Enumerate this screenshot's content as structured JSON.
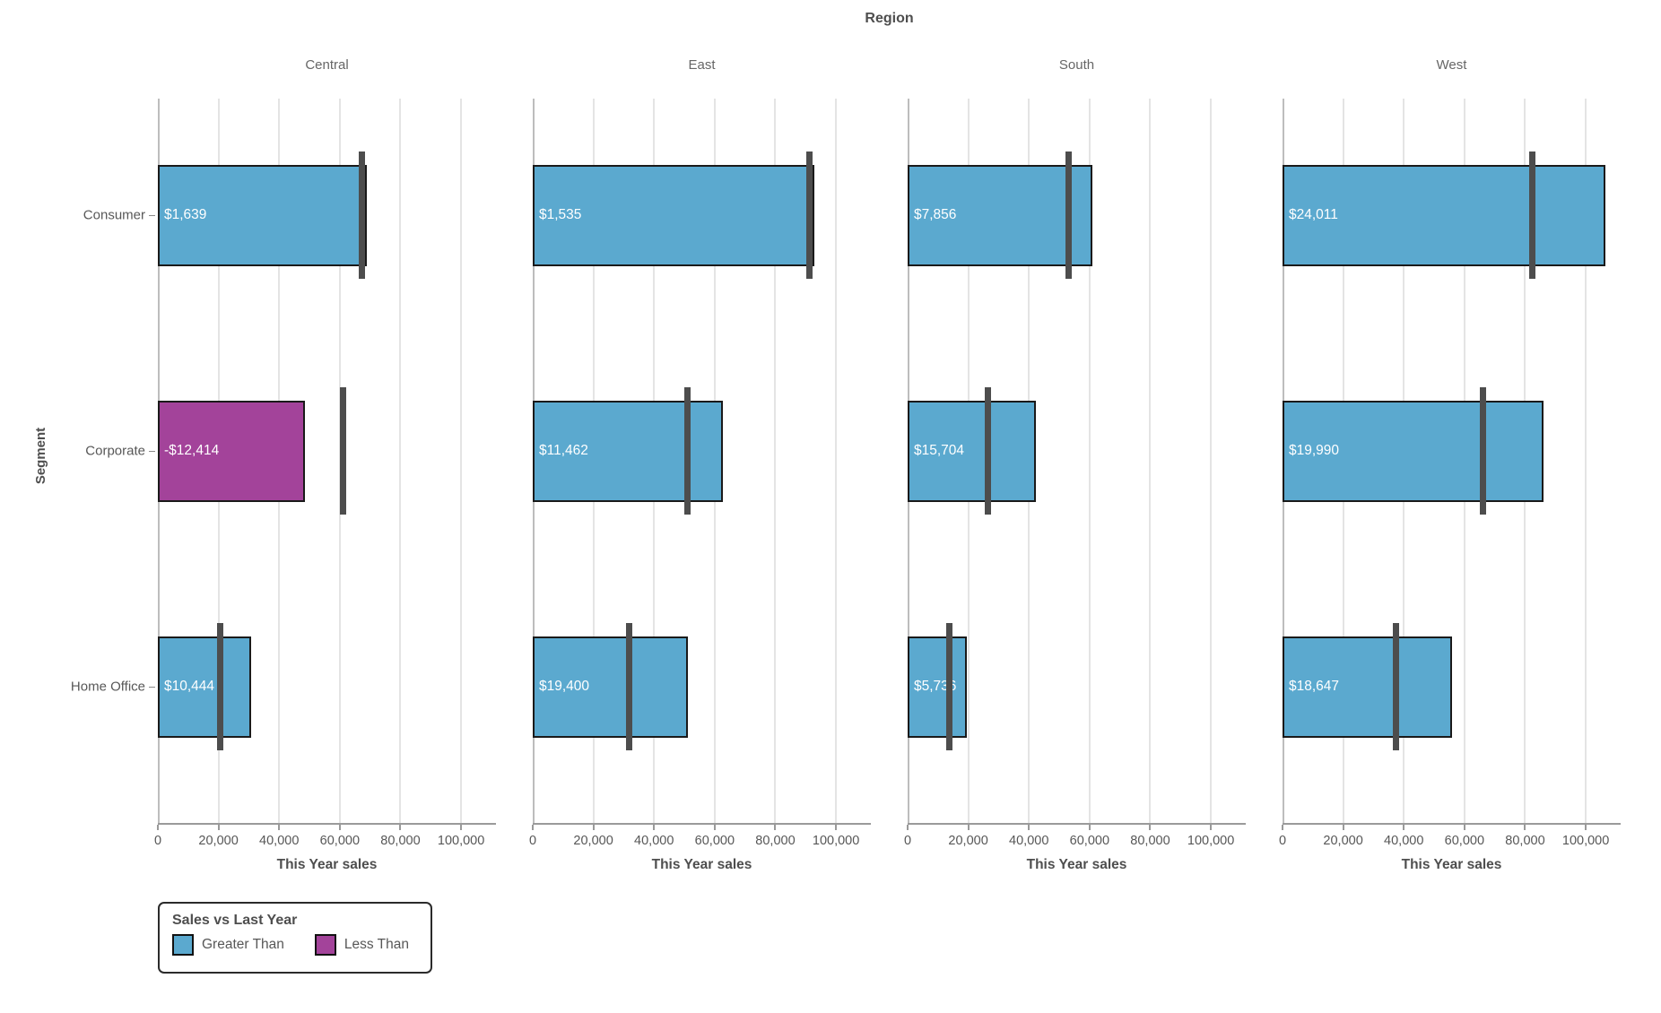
{
  "title": "Region",
  "y_axis_title_text": "Segment",
  "colors": {
    "greater": "#5BA9CF",
    "less": "#A3439A",
    "reference_line": "#4D4D4D",
    "bar_border": "#1A1A1A",
    "gridline": "#E4E4E4"
  },
  "legend": {
    "title": "Sales vs Last Year",
    "items": [
      {
        "label": "Greater Than",
        "color_key": "greater"
      },
      {
        "label": "Less Than",
        "color_key": "less"
      }
    ]
  },
  "chart_data": {
    "type": "bar",
    "subtype": "bullet-chart-small-multiples",
    "facet_row_title": "Region",
    "facets": [
      "Central",
      "East",
      "South",
      "West"
    ],
    "categories": [
      "Consumer",
      "Corporate",
      "Home Office"
    ],
    "y_axis_title": "Segment",
    "x_axis": {
      "label": "This Year sales",
      "ticks": [
        0,
        20000,
        40000,
        60000,
        80000,
        100000
      ],
      "tick_labels": [
        "0",
        "20,000",
        "40,000",
        "60,000",
        "80,000",
        "100,000"
      ],
      "xlim": [
        0,
        111500
      ],
      "grid": true
    },
    "series": [
      {
        "region": "Central",
        "segment": "Consumer",
        "this_year": 68800,
        "last_year": 67161,
        "label": "$1,639",
        "status": "greater"
      },
      {
        "region": "Central",
        "segment": "Corporate",
        "this_year": 48600,
        "last_year": 61014,
        "label": "-$12,414",
        "status": "less"
      },
      {
        "region": "Central",
        "segment": "Home Office",
        "this_year": 30900,
        "last_year": 20456,
        "label": "$10,444",
        "status": "greater"
      },
      {
        "region": "East",
        "segment": "Consumer",
        "this_year": 92900,
        "last_year": 91365,
        "label": "$1,535",
        "status": "greater"
      },
      {
        "region": "East",
        "segment": "Corporate",
        "this_year": 62600,
        "last_year": 51138,
        "label": "$11,462",
        "status": "greater"
      },
      {
        "region": "East",
        "segment": "Home Office",
        "this_year": 51200,
        "last_year": 31800,
        "label": "$19,400",
        "status": "greater"
      },
      {
        "region": "South",
        "segment": "Consumer",
        "this_year": 60800,
        "last_year": 52944,
        "label": "$7,856",
        "status": "greater"
      },
      {
        "region": "South",
        "segment": "Corporate",
        "this_year": 42200,
        "last_year": 26496,
        "label": "$15,704",
        "status": "greater"
      },
      {
        "region": "South",
        "segment": "Home Office",
        "this_year": 19600,
        "last_year": 13864,
        "label": "$5,736",
        "status": "greater"
      },
      {
        "region": "West",
        "segment": "Consumer",
        "this_year": 106400,
        "last_year": 82389,
        "label": "$24,011",
        "status": "greater"
      },
      {
        "region": "West",
        "segment": "Corporate",
        "this_year": 86000,
        "last_year": 66010,
        "label": "$19,990",
        "status": "greater"
      },
      {
        "region": "West",
        "segment": "Home Office",
        "this_year": 56000,
        "last_year": 37353,
        "label": "$18,647",
        "status": "greater"
      }
    ],
    "legend_position": "bottom-left"
  }
}
